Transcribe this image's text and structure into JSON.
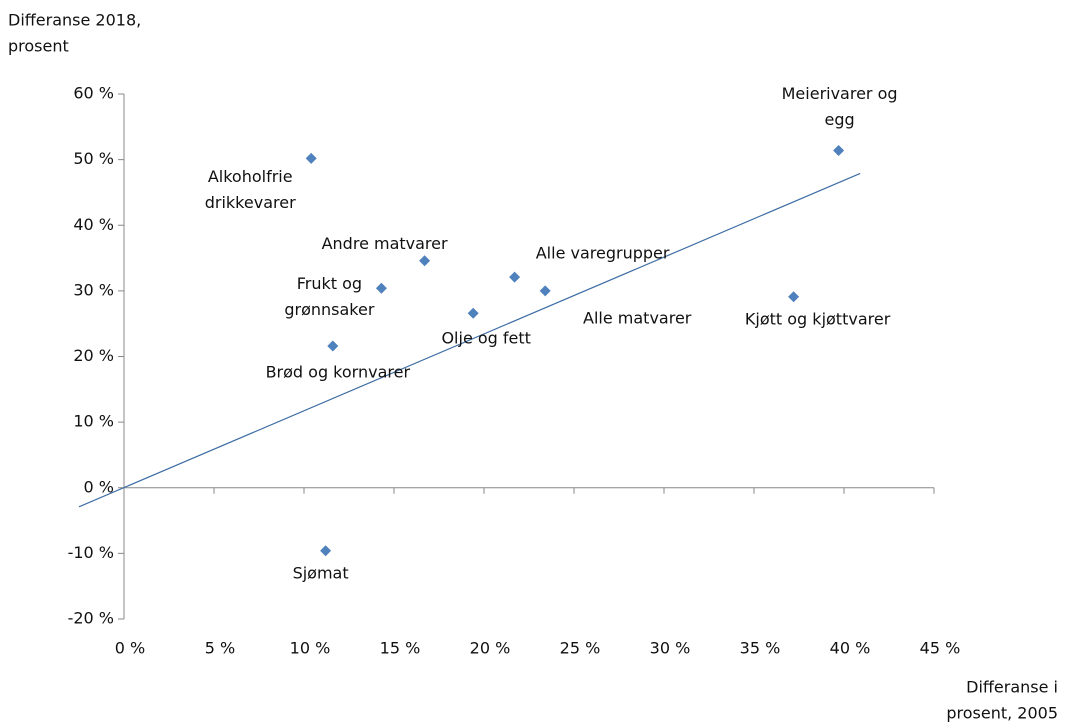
{
  "chart_data": {
    "type": "scatter",
    "y_axis_title": [
      "Differanse 2018,",
      "prosent"
    ],
    "x_axis_title": [
      "Differanse i",
      "prosent, 2005"
    ],
    "color": "#4f81bd",
    "trendline": {
      "color": "#3e6ea5",
      "x": [
        -2.5,
        40.9
      ],
      "y": [
        -2.9,
        47.9
      ]
    },
    "points": [
      {
        "label": [
          "Alkoholfrie",
          "drikkevarer"
        ],
        "x": 10.4,
        "y": 50.2
      },
      {
        "label": [
          "Meierivarer og",
          "egg"
        ],
        "x": 39.7,
        "y": 51.4
      },
      {
        "label": [
          "Andre matvarer"
        ],
        "x": 16.7,
        "y": 34.6
      },
      {
        "label": [
          "Frukt og",
          "grønnsaker"
        ],
        "x": 14.3,
        "y": 30.4
      },
      {
        "label": [
          "Alle varegrupper"
        ],
        "x": 21.7,
        "y": 32.1
      },
      {
        "label": [
          "Alle matvarer"
        ],
        "x": 23.4,
        "y": 30.0
      },
      {
        "label": [
          "Olje og fett"
        ],
        "x": 19.4,
        "y": 26.6
      },
      {
        "label": [
          "Kjøtt og kjøttvarer"
        ],
        "x": 37.2,
        "y": 29.1
      },
      {
        "label": [
          "Brød og kornvarer"
        ],
        "x": 11.6,
        "y": 21.6
      },
      {
        "label": [
          "Sjømat"
        ],
        "x": 11.2,
        "y": -9.6
      }
    ],
    "xlim": [
      0,
      45
    ],
    "xticks": [
      {
        "value": 0,
        "label": "0 %"
      },
      {
        "value": 5,
        "label": "5 %"
      },
      {
        "value": 10,
        "label": "10 %"
      },
      {
        "value": 15,
        "label": "15 %"
      },
      {
        "value": 20,
        "label": "20 %"
      },
      {
        "value": 25,
        "label": "25 %"
      },
      {
        "value": 30,
        "label": "30 %"
      },
      {
        "value": 35,
        "label": "35 %"
      },
      {
        "value": 40,
        "label": "40 %"
      },
      {
        "value": 45,
        "label": "45 %"
      }
    ],
    "ylim": [
      -20,
      60
    ],
    "yticks": [
      {
        "value": -20,
        "label": "-20 %"
      },
      {
        "value": -10,
        "label": "-10 %"
      },
      {
        "value": 0,
        "label": "0 %"
      },
      {
        "value": 10,
        "label": "10 %"
      },
      {
        "value": 20,
        "label": "20 %"
      },
      {
        "value": 30,
        "label": "30 %"
      },
      {
        "value": 40,
        "label": "40 %"
      },
      {
        "value": 50,
        "label": "50 %"
      },
      {
        "value": 60,
        "label": "60 %"
      }
    ]
  }
}
